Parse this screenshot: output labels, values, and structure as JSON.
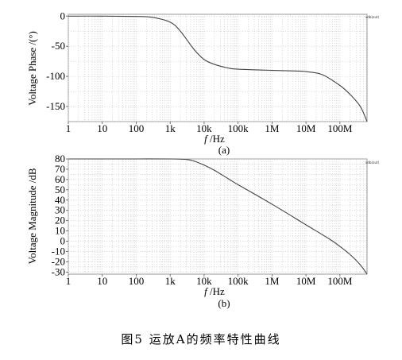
{
  "caption": "图5   运放A的频率特性曲线",
  "chart_data": [
    {
      "id": "phase",
      "type": "line",
      "panel_label": "(a)",
      "ylabel": "Voltage Phase /(°)",
      "xlabel_italic": "f",
      "xlabel_rest": " /Hz",
      "corner_tag": "vdb(out)",
      "xscale": "log",
      "xlim": [
        1,
        630000000
      ],
      "ylim": [
        -175,
        3
      ],
      "grid": true,
      "x_ticks": [
        1,
        10,
        100,
        1000,
        10000,
        100000,
        1000000,
        10000000,
        100000000
      ],
      "x_tick_labels": [
        "1",
        "10",
        "100",
        "1k",
        "10k",
        "100k",
        "1M",
        "10M",
        "100M"
      ],
      "y_ticks": [
        0,
        -50,
        -100,
        -150
      ],
      "y_tick_labels": [
        "0",
        "-50",
        "-100",
        "-150"
      ],
      "series": [
        {
          "x": [
            1,
            10,
            100,
            300,
            1000,
            2000,
            5000,
            10000,
            20000,
            50000,
            100000,
            1000000,
            5000000,
            10000000,
            30000000,
            100000000,
            200000000,
            400000000,
            630000000
          ],
          "y": [
            0,
            0,
            -0.5,
            -2,
            -10,
            -25,
            -55,
            -72,
            -80,
            -86,
            -88,
            -90,
            -91,
            -92,
            -97,
            -115,
            -130,
            -150,
            -175
          ]
        }
      ]
    },
    {
      "id": "magnitude",
      "type": "line",
      "panel_label": "(b)",
      "ylabel": "Voltage Magnitude /dB",
      "xlabel_italic": "f",
      "xlabel_rest": " /Hz",
      "corner_tag": "vdb(out)",
      "xscale": "log",
      "xlim": [
        1,
        630000000
      ],
      "ylim": [
        -32,
        80
      ],
      "grid": true,
      "x_ticks": [
        1,
        10,
        100,
        1000,
        10000,
        100000,
        1000000,
        10000000,
        100000000
      ],
      "x_tick_labels": [
        "1",
        "10",
        "100",
        "1k",
        "10k",
        "100k",
        "1M",
        "10M",
        "100M"
      ],
      "y_ticks": [
        80,
        70,
        60,
        50,
        40,
        30,
        20,
        10,
        0,
        -10,
        -20,
        -30
      ],
      "y_tick_labels": [
        "80",
        "70",
        "60",
        "50",
        "40",
        "30",
        "20",
        "10",
        "0",
        "-10",
        "-20",
        "-30"
      ],
      "series": [
        {
          "x": [
            1,
            10,
            100,
            1000,
            3000,
            5000,
            10000,
            20000,
            50000,
            100000,
            1000000,
            10000000,
            50000000,
            100000000,
            200000000,
            400000000,
            630000000
          ],
          "y": [
            80,
            80,
            80,
            80,
            79.5,
            78,
            74,
            69,
            61,
            55,
            36,
            16,
            2,
            -5,
            -13,
            -23,
            -32
          ]
        }
      ]
    }
  ]
}
